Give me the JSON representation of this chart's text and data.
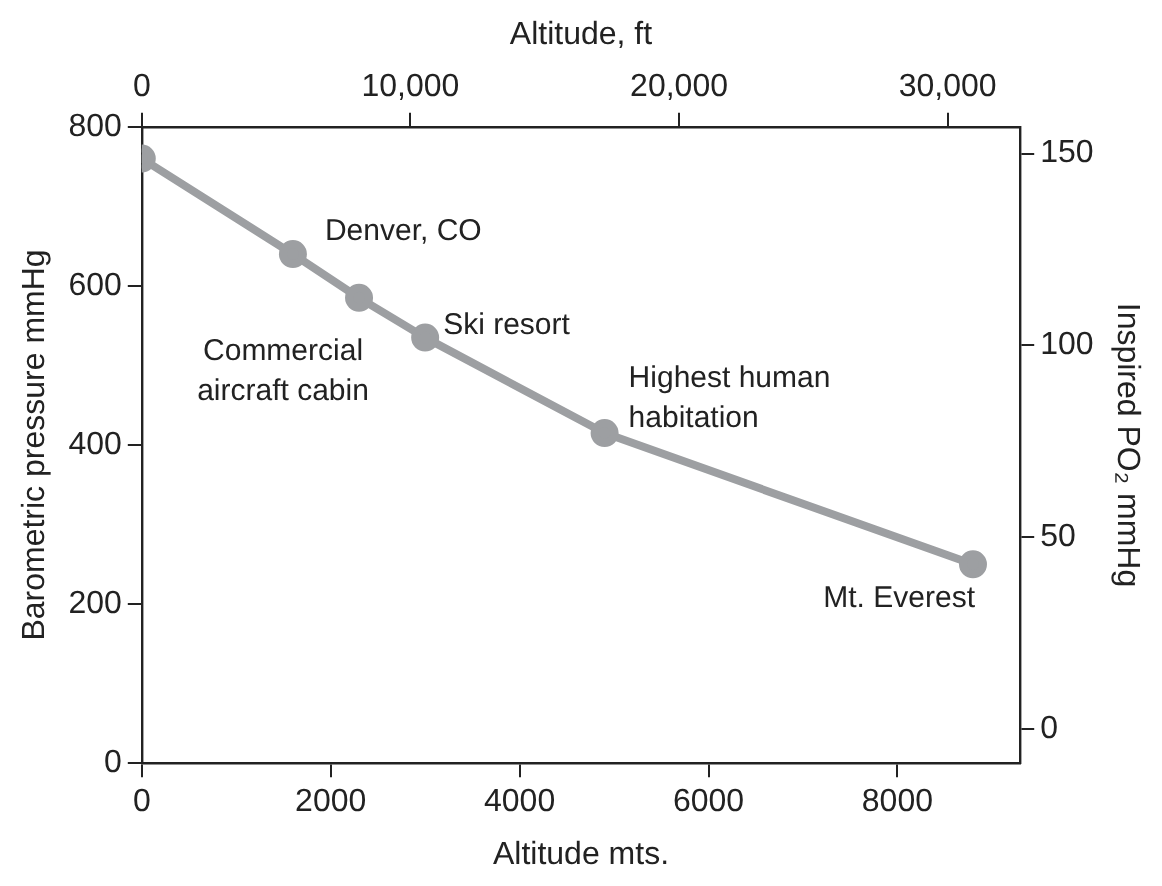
{
  "chart_data": {
    "type": "line",
    "xlabel": "Altitude mts.",
    "ylabel": "Barometric pressure mmHg",
    "y2label": "Inspired PO₂ mmHg",
    "x2label": "Altitude, ft",
    "x": [
      0,
      1600,
      2300,
      3000,
      4900,
      8800
    ],
    "series": [
      {
        "color": "#9d9fa2",
        "values": [
          760,
          640,
          585,
          535,
          415,
          250
        ]
      }
    ],
    "xlim": [
      0,
      9300
    ],
    "xticks": [
      0,
      2000,
      4000,
      6000,
      8000
    ],
    "x2lim": [
      0,
      32700
    ],
    "x2ticks": [
      0,
      {
        "value": 10000,
        "label": "10,000"
      },
      {
        "value": 20000,
        "label": "20,000"
      },
      {
        "value": 30000,
        "label": "30,000"
      }
    ],
    "ylim": [
      0,
      800
    ],
    "yticks": [
      0,
      200,
      400,
      600,
      800
    ],
    "y2lim": [
      -9,
      157
    ],
    "y2ticks": [
      0,
      50,
      100,
      150
    ],
    "marker": "circle",
    "line_style": "solid",
    "grid": false,
    "legend": false,
    "annotations": [
      {
        "text": "Denver, CO",
        "x": 1600,
        "y": 640
      },
      {
        "text": "Commercial\naircraft cabin",
        "x": 2300,
        "y": 585
      },
      {
        "text": "Ski resort",
        "x": 3000,
        "y": 535
      },
      {
        "text": "Highest human\nhabitation",
        "x": 4900,
        "y": 415
      },
      {
        "text": "Mt. Everest",
        "x": 8800,
        "y": 250
      }
    ]
  }
}
